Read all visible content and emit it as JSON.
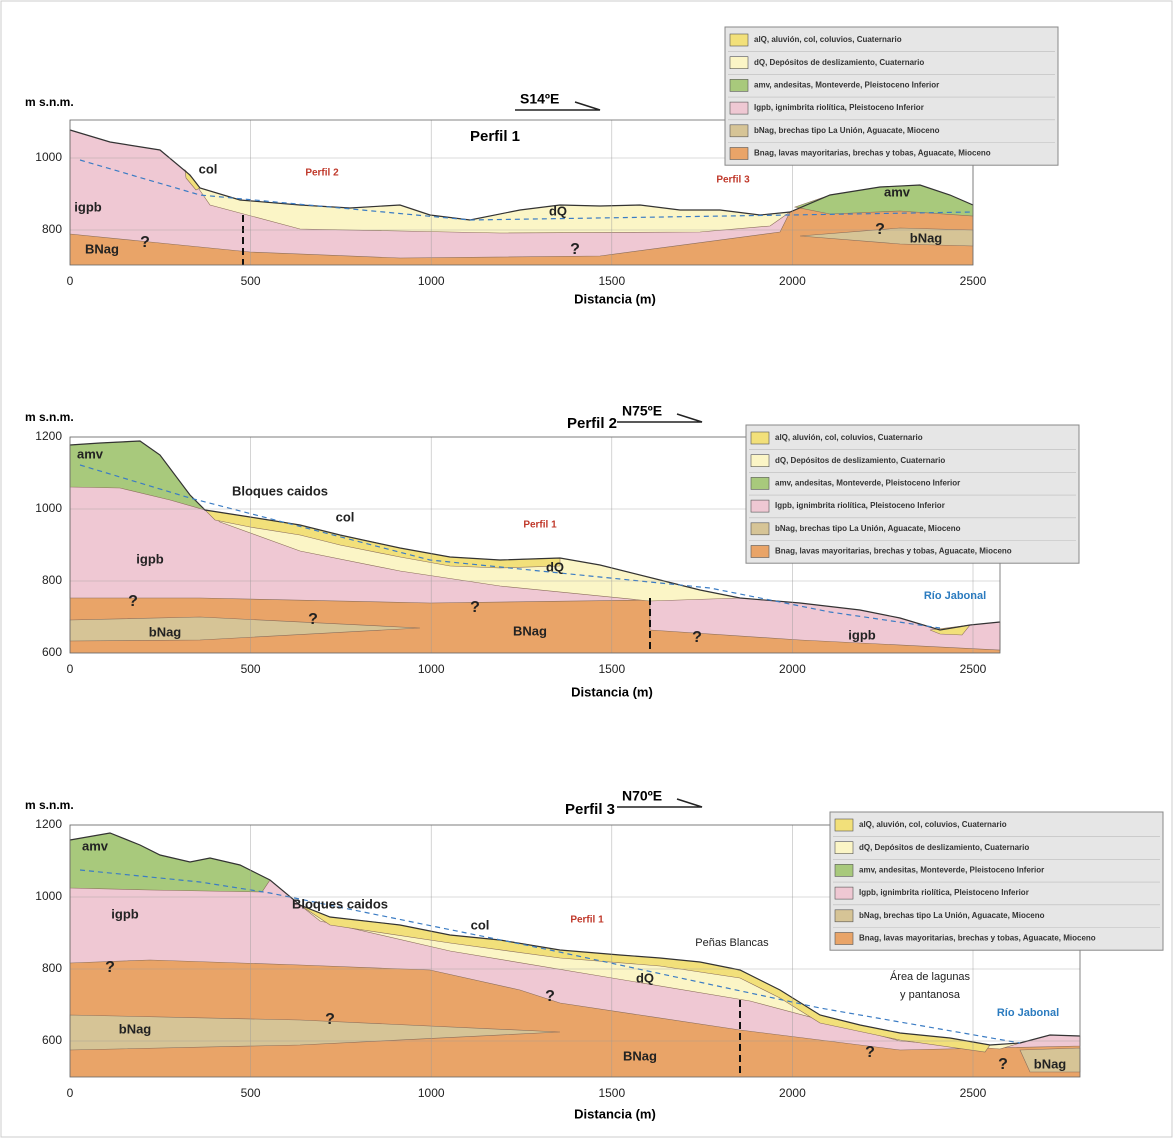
{
  "legend": [
    {
      "color": "#f2e07a",
      "text": "alQ, aluvión, col, coluvios, Cuaternario"
    },
    {
      "color": "#fbf5c6",
      "text": "dQ, Depósitos de deslizamiento, Cuaternario"
    },
    {
      "color": "#a8c97c",
      "text": "amv, andesitas, Monteverde, Pleistoceno Inferior"
    },
    {
      "color": "#efc8d3",
      "text": "Igpb, ignimbrita riolítica, Pleistoceno Inferior"
    },
    {
      "color": "#d6c496",
      "text": "bNag, brechas tipo La Unión, Aguacate, Mioceno"
    },
    {
      "color": "#e9a468",
      "text": "Bnag, lavas mayoritarias, brechas y tobas, Aguacate, Mioceno"
    }
  ],
  "profiles": [
    {
      "unit_label": "m s.n.m.",
      "title": "Perfil 1",
      "direction": "S14ºE",
      "x_axis_label": "Distancia (m)",
      "xticks": [
        0,
        500,
        1000,
        1500,
        2000,
        2500
      ],
      "yticks": [
        800,
        1000
      ],
      "labels": [
        "col",
        "Perfil 2",
        "Perfil 3",
        "dQ",
        "amv",
        "igpb",
        "BNag",
        "?",
        "?",
        "?",
        "bNag"
      ]
    },
    {
      "unit_label": "m s.n.m.",
      "title": "Perfil 2",
      "direction": "N75ºE",
      "x_axis_label": "Distancia (m)",
      "xticks": [
        0,
        500,
        1000,
        1500,
        2000,
        2500
      ],
      "yticks": [
        600,
        800,
        1000,
        1200
      ],
      "labels": [
        "amv",
        "Bloques caidos",
        "col",
        "Perfil 1",
        "dQ",
        "igpb",
        "?",
        "?",
        "?",
        "?",
        "bNag",
        "BNag",
        "igpb",
        "Río Jabonal"
      ]
    },
    {
      "unit_label": "m s.n.m.",
      "title": "Perfil 3",
      "direction": "N70ºE",
      "x_axis_label": "Distancia (m)",
      "xticks": [
        0,
        500,
        1000,
        1500,
        2000,
        2500
      ],
      "yticks": [
        600,
        800,
        1000,
        1200
      ],
      "labels": [
        "amv",
        "igpb",
        "?",
        "Bloques caidos",
        "col",
        "Perfil 1",
        "Peñas Blancas",
        "dQ",
        "?",
        "?",
        "bNag",
        "BNag",
        "?",
        "?",
        "bNag",
        "Área de lagunas",
        "y pantanosa",
        "Río Jabonal"
      ]
    }
  ]
}
